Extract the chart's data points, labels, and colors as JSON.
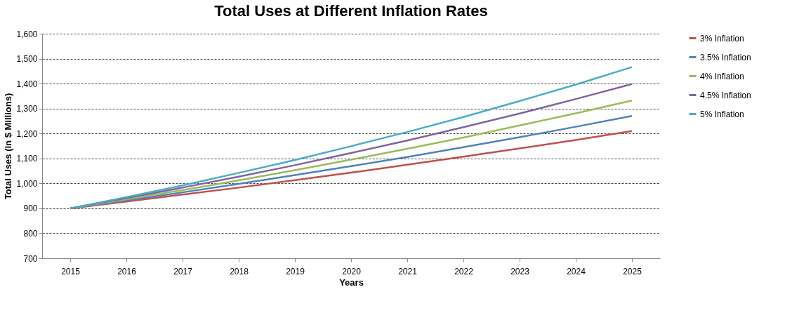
{
  "chart_data": {
    "type": "line",
    "title": "Total Uses at Different Inflation Rates",
    "xlabel": "Years",
    "ylabel": "Total Uses (in $ Millions)",
    "categories": [
      "2015",
      "2016",
      "2017",
      "2018",
      "2019",
      "2020",
      "2021",
      "2022",
      "2023",
      "2024",
      "2025"
    ],
    "series": [
      {
        "name": "3% Inflation",
        "color": "#c0504d",
        "values": [
          900,
          927,
          955,
          983,
          1013,
          1043,
          1075,
          1107,
          1140,
          1174,
          1210
        ]
      },
      {
        "name": "3.5% Inflation",
        "color": "#4f81bd",
        "values": [
          900,
          932,
          964,
          998,
          1033,
          1069,
          1106,
          1145,
          1185,
          1227,
          1270
        ]
      },
      {
        "name": "4% Inflation",
        "color": "#9bbb59",
        "values": [
          900,
          936,
          973,
          1012,
          1053,
          1095,
          1139,
          1184,
          1232,
          1281,
          1332
        ]
      },
      {
        "name": "4.5% Inflation",
        "color": "#8064a2",
        "values": [
          900,
          941,
          983,
          1027,
          1073,
          1122,
          1172,
          1225,
          1280,
          1338,
          1398
        ]
      },
      {
        "name": "5% Inflation",
        "color": "#4bacc6",
        "values": [
          900,
          945,
          992,
          1042,
          1094,
          1149,
          1206,
          1266,
          1330,
          1396,
          1466
        ]
      }
    ],
    "ylim": [
      700,
      1600
    ],
    "yticks": [
      {
        "value": 700,
        "label": "700"
      },
      {
        "value": 800,
        "label": "800"
      },
      {
        "value": 900,
        "label": "900"
      },
      {
        "value": 1000,
        "label": "1,000"
      },
      {
        "value": 1100,
        "label": "1,100"
      },
      {
        "value": 1200,
        "label": "1,200"
      },
      {
        "value": 1300,
        "label": "1,300"
      },
      {
        "value": 1400,
        "label": "1,400"
      },
      {
        "value": 1500,
        "label": "1,500"
      },
      {
        "value": 1600,
        "label": "1,600"
      }
    ],
    "grid": "y",
    "legend": "right",
    "marker": "none",
    "line_style": "solid"
  }
}
